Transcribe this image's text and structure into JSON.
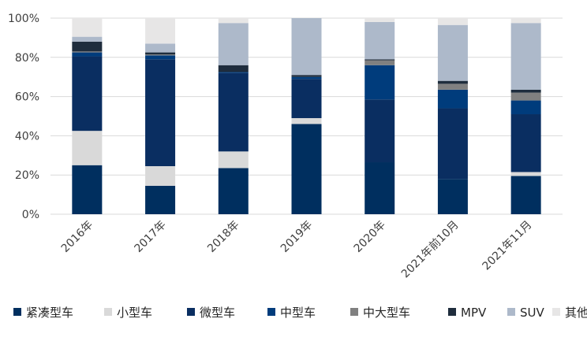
{
  "chart_data": {
    "type": "bar",
    "stacked": true,
    "percent": true,
    "categories": [
      "2016年",
      "2017年",
      "2018年",
      "2019年",
      "2020年",
      "2021年前10月",
      "2021年11月"
    ],
    "y_ticks": [
      "0%",
      "20%",
      "40%",
      "60%",
      "80%",
      "100%"
    ],
    "ylim": [
      0,
      100
    ],
    "grid": true,
    "legend_position": "bottom",
    "series": [
      {
        "name": "紧凑型车",
        "color": "#002F5F",
        "values": [
          25,
          14.5,
          23.5,
          46,
          26.5,
          18,
          19.5
        ]
      },
      {
        "name": "小型车",
        "color": "#D9D9D9",
        "values": [
          17.5,
          10,
          8.5,
          3,
          0,
          0,
          2
        ]
      },
      {
        "name": "微型车",
        "color": "#0A2E61",
        "values": [
          38,
          54.5,
          40,
          20,
          32,
          36,
          29.5
        ]
      },
      {
        "name": "中型车",
        "color": "#003C7C",
        "values": [
          2,
          2,
          0.5,
          1,
          17.5,
          9.5,
          7
        ]
      },
      {
        "name": "中大型车",
        "color": "#808080",
        "values": [
          0.5,
          0.5,
          0,
          0,
          2.5,
          3,
          4
        ]
      },
      {
        "name": "MPV",
        "color": "#1F2D3D",
        "values": [
          5,
          1,
          3.5,
          1,
          0.5,
          1.5,
          1.5
        ]
      },
      {
        "name": "SUV",
        "color": "#ADB9CA",
        "values": [
          2.5,
          4.5,
          21.5,
          29,
          19,
          28.5,
          34
        ]
      },
      {
        "name": "其他",
        "color": "#E7E6E6",
        "values": [
          9.5,
          13,
          2.5,
          0,
          2,
          3.5,
          2.5
        ]
      }
    ]
  }
}
